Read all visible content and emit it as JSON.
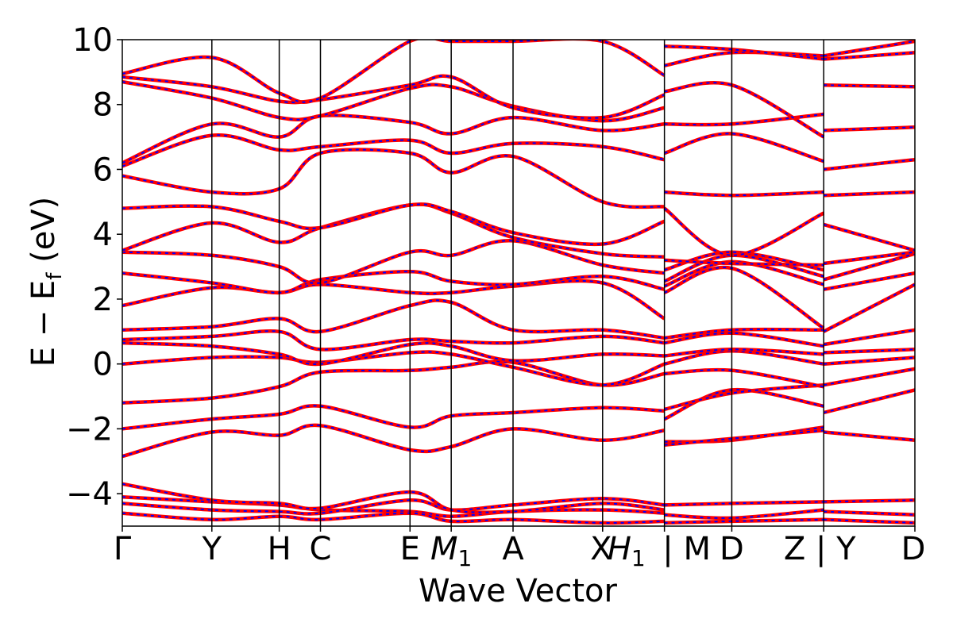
{
  "chart_data": {
    "type": "line",
    "title": "",
    "xlabel": "Wave Vector",
    "ylabel_main": "E − E",
    "ylabel_sub": "f",
    "ylabel_unit": " (eV)",
    "ylim": [
      -5,
      10
    ],
    "yticks": [
      -4,
      -2,
      0,
      2,
      4,
      6,
      8,
      10
    ],
    "ytick_labels": [
      "−4",
      "−2",
      "0",
      "2",
      "4",
      "6",
      "8",
      "10"
    ],
    "grid": false,
    "legend": "none",
    "series_colors": {
      "primary": "#ff0000",
      "overlay": "#0000ff"
    },
    "kpath": [
      {
        "label": "Γ",
        "x": 0.0
      },
      {
        "label": "Y",
        "x": 1.13
      },
      {
        "label": "H",
        "x": 1.98
      },
      {
        "label": "C",
        "x": 2.5
      },
      {
        "label": "E",
        "x": 3.63
      },
      {
        "label": "M",
        "sub": "1",
        "x": 4.15
      },
      {
        "label": "A",
        "x": 4.93
      },
      {
        "label": "X",
        "x": 6.06
      },
      {
        "label": "H",
        "sub": "1",
        "x": 6.06
      },
      {
        "label": "| M",
        "x": 6.84
      },
      {
        "label": "D",
        "x": 7.69
      },
      {
        "label": "Z | Y",
        "x": 8.85
      },
      {
        "label": "D",
        "x": 10.0
      }
    ],
    "vertical_lines_x": [
      1.13,
      1.98,
      2.5,
      3.63,
      4.15,
      4.93,
      6.06,
      6.84,
      7.69,
      8.85
    ],
    "segments": [
      {
        "x": [
          0.0,
          1.13,
          1.98,
          2.5,
          3.63,
          4.15,
          4.93,
          6.06,
          6.84
        ],
        "bands": [
          [
            -2.85,
            -2.1,
            -2.2,
            -1.9,
            -2.65,
            -2.55,
            -2.0,
            -2.35,
            -2.05
          ],
          [
            -2.0,
            -1.7,
            -1.55,
            -1.3,
            -1.95,
            -1.6,
            -1.5,
            -1.35,
            -1.45
          ],
          [
            -1.2,
            -1.05,
            -0.7,
            -0.25,
            -0.2,
            -0.1,
            0.05,
            -0.65,
            -0.3
          ],
          [
            0.0,
            0.2,
            0.2,
            0.05,
            0.35,
            0.3,
            -0.1,
            -0.65,
            0.0
          ],
          [
            0.65,
            0.55,
            0.3,
            0.0,
            0.6,
            0.55,
            0.1,
            0.3,
            0.25
          ],
          [
            0.75,
            0.85,
            1.0,
            0.45,
            0.75,
            0.7,
            0.65,
            0.85,
            0.65
          ],
          [
            1.05,
            1.15,
            1.4,
            1.0,
            1.8,
            1.9,
            1.05,
            1.05,
            0.8
          ],
          [
            1.8,
            2.35,
            2.2,
            2.45,
            2.2,
            2.2,
            2.4,
            2.5,
            1.4
          ],
          [
            2.8,
            2.5,
            2.2,
            2.6,
            2.85,
            2.55,
            2.45,
            2.7,
            2.3
          ],
          [
            3.45,
            3.35,
            3.0,
            2.5,
            3.45,
            3.35,
            3.8,
            3.05,
            2.8
          ],
          [
            3.5,
            4.35,
            3.75,
            4.2,
            4.9,
            4.65,
            3.9,
            3.4,
            3.3
          ],
          [
            4.8,
            4.85,
            4.4,
            4.2,
            4.9,
            4.7,
            4.05,
            3.7,
            4.4
          ],
          [
            5.8,
            5.3,
            5.4,
            6.5,
            6.5,
            5.9,
            6.4,
            5.0,
            4.85
          ],
          [
            6.1,
            7.05,
            6.6,
            6.7,
            6.9,
            6.5,
            6.8,
            6.7,
            6.3
          ],
          [
            6.2,
            7.4,
            7.0,
            7.65,
            7.45,
            7.1,
            7.6,
            7.2,
            7.4
          ],
          [
            8.7,
            8.2,
            7.6,
            7.65,
            8.5,
            8.55,
            7.95,
            7.5,
            7.9
          ],
          [
            8.85,
            8.55,
            8.1,
            8.15,
            8.6,
            8.85,
            7.9,
            7.6,
            8.3
          ],
          [
            8.95,
            9.45,
            8.35,
            8.2,
            9.95,
            9.95,
            9.95,
            9.95,
            8.9
          ],
          [
            -4.1,
            -4.25,
            -4.35,
            -4.5,
            -4.55,
            -4.7,
            -4.55,
            -4.5,
            -4.6
          ],
          [
            -4.3,
            -4.5,
            -4.55,
            -4.6,
            -4.2,
            -4.5,
            -4.35,
            -4.15,
            -4.35
          ],
          [
            -3.7,
            -4.2,
            -4.3,
            -4.45,
            -3.95,
            -4.5,
            -4.55,
            -4.3,
            -4.5
          ],
          [
            -4.6,
            -4.8,
            -4.7,
            -4.8,
            -4.6,
            -4.85,
            -4.8,
            -4.9,
            -4.85
          ]
        ]
      },
      {
        "x": [
          6.84,
          7.69,
          8.85
        ],
        "bands": [
          [
            -2.4,
            -2.35,
            -1.95
          ],
          [
            -2.5,
            -2.3,
            -2.05
          ],
          [
            -1.7,
            -0.8,
            -1.3
          ],
          [
            -1.4,
            -0.9,
            -0.65
          ],
          [
            -0.3,
            -0.2,
            -0.7
          ],
          [
            0.0,
            0.4,
            0.0
          ],
          [
            0.25,
            0.45,
            0.3
          ],
          [
            0.65,
            0.95,
            0.55
          ],
          [
            0.8,
            1.05,
            1.05
          ],
          [
            2.2,
            2.95,
            1.1
          ],
          [
            2.4,
            3.15,
            2.45
          ],
          [
            2.55,
            3.35,
            2.7
          ],
          [
            2.9,
            3.45,
            2.9
          ],
          [
            3.2,
            3.1,
            3.05
          ],
          [
            4.8,
            3.35,
            4.65
          ],
          [
            5.3,
            5.2,
            5.3
          ],
          [
            6.5,
            7.1,
            6.25
          ],
          [
            7.4,
            7.4,
            7.7
          ],
          [
            8.4,
            8.6,
            7.0
          ],
          [
            9.2,
            9.6,
            9.5
          ],
          [
            9.8,
            9.7,
            9.4
          ],
          [
            -4.35,
            -4.3,
            -4.25
          ],
          [
            -4.65,
            -4.75,
            -4.5
          ],
          [
            -4.9,
            -4.85,
            -4.8
          ]
        ]
      },
      {
        "x": [
          8.85,
          10.0
        ],
        "bands": [
          [
            -2.1,
            -2.35
          ],
          [
            -1.5,
            -0.8
          ],
          [
            -0.65,
            -0.15
          ],
          [
            0.0,
            0.2
          ],
          [
            0.35,
            0.45
          ],
          [
            0.6,
            1.05
          ],
          [
            1.0,
            2.45
          ],
          [
            2.3,
            2.8
          ],
          [
            2.6,
            3.4
          ],
          [
            3.1,
            3.45
          ],
          [
            4.3,
            3.5
          ],
          [
            5.2,
            5.3
          ],
          [
            6.0,
            6.3
          ],
          [
            7.2,
            7.3
          ],
          [
            8.6,
            8.55
          ],
          [
            9.4,
            9.6
          ],
          [
            9.5,
            9.95
          ],
          [
            -4.25,
            -4.2
          ],
          [
            -4.55,
            -4.65
          ],
          [
            -4.8,
            -4.9
          ]
        ]
      }
    ]
  }
}
